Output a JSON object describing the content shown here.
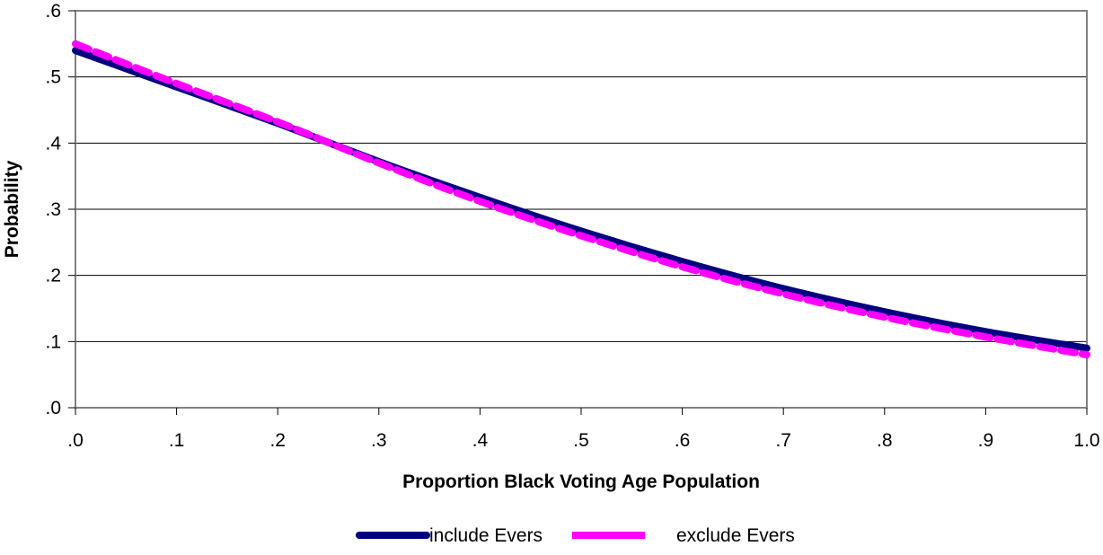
{
  "chart_data": {
    "type": "line",
    "xlabel": "Proportion Black Voting Age Population",
    "ylabel": "Probability",
    "xlim": [
      0,
      1
    ],
    "ylim": [
      0,
      0.6
    ],
    "x_ticks": [
      ".0",
      ".1",
      ".2",
      ".3",
      ".4",
      ".5",
      ".6",
      ".7",
      ".8",
      ".9",
      "1.0"
    ],
    "y_ticks": [
      ".0",
      ".1",
      ".2",
      ".3",
      ".4",
      ".5",
      ".6"
    ],
    "grid": "horizontal",
    "legend_position": "bottom",
    "x": [
      0.0,
      0.1,
      0.2,
      0.3,
      0.4,
      0.5,
      0.6,
      0.7,
      0.8,
      0.9,
      1.0
    ],
    "series": [
      {
        "name": "include Evers",
        "color": "#000080",
        "style": "solid",
        "values": [
          0.54,
          0.485,
          0.43,
          0.372,
          0.318,
          0.267,
          0.221,
          0.18,
          0.145,
          0.115,
          0.09
        ]
      },
      {
        "name": "exclude Evers",
        "color": "#ff00ff",
        "style": "dashed",
        "values": [
          0.55,
          0.49,
          0.432,
          0.37,
          0.312,
          0.26,
          0.213,
          0.172,
          0.137,
          0.107,
          0.08
        ]
      }
    ]
  }
}
